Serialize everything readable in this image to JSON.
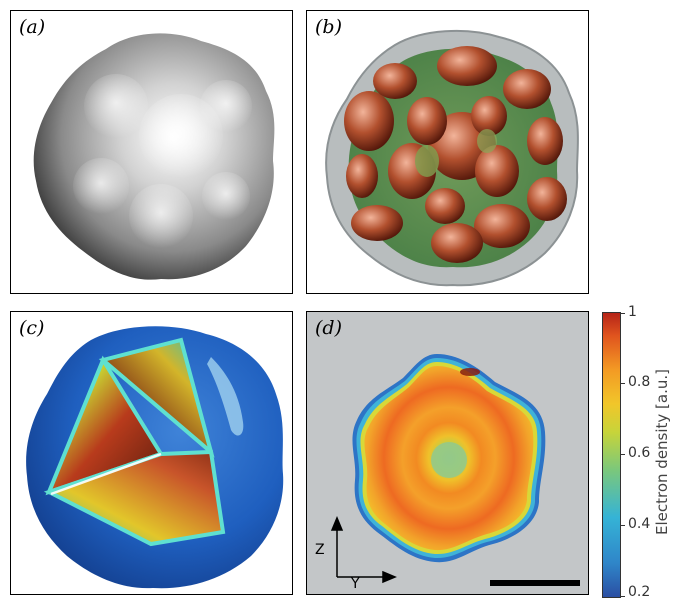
{
  "panels": {
    "a": {
      "label": "(a)"
    },
    "b": {
      "label": "(b)"
    },
    "c": {
      "label": "(c)"
    },
    "d": {
      "label": "(d)"
    }
  },
  "colorbar": {
    "title": "Electron density  [a.u.]",
    "ticks": [
      "1",
      "0.8",
      "0.6",
      "0.4",
      "0.2"
    ]
  },
  "axes": {
    "vertical": "Z",
    "horizontal": "Y"
  },
  "colors": {
    "panel_d_background": "#c3c6c8",
    "low_density": "#2b4fa3",
    "high_density": "#b52418"
  }
}
